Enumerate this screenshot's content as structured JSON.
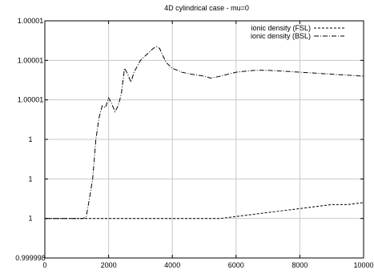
{
  "chart_data": {
    "type": "line",
    "title": "4D cylindrical case - mu=0",
    "xlabel": "",
    "ylabel": "",
    "xlim": [
      0,
      10000
    ],
    "ylim": [
      0.999998,
      1.00001
    ],
    "grid": true,
    "legend_position": "top-right",
    "x_ticks": [
      0,
      2000,
      4000,
      6000,
      8000,
      10000
    ],
    "x_tick_labels": [
      "0",
      "2000",
      "4000",
      "6000",
      "8000",
      "10000"
    ],
    "y_ticks": [
      0.999998,
      1.0,
      1.000002,
      1.000004,
      1.000006,
      1.000008,
      1.00001
    ],
    "y_tick_labels": [
      "0.999998",
      "1",
      "1",
      "1",
      "1.00001",
      "1.00001",
      "1.00001"
    ],
    "series": [
      {
        "name": "ionic density (FSL)",
        "style": "dashed",
        "color": "#000000",
        "x": [
          0,
          1000,
          2000,
          3000,
          4000,
          5000,
          5500,
          6000,
          6500,
          7000,
          7500,
          8000,
          8500,
          9000,
          9500,
          10000
        ],
        "y": [
          1.0,
          1.0,
          1.0,
          1.0,
          1.0,
          1.0,
          1.0,
          1.0000001,
          1.0000002,
          1.0000003,
          1.0000004,
          1.0000005,
          1.0000006,
          1.0000007,
          1.0000007,
          1.0000008
        ]
      },
      {
        "name": "ionic density (BSL)",
        "style": "dash-dot",
        "color": "#000000",
        "x": [
          0,
          1000,
          1200,
          1300,
          1400,
          1500,
          1600,
          1700,
          1800,
          1900,
          2000,
          2100,
          2200,
          2300,
          2400,
          2500,
          2600,
          2700,
          2800,
          3000,
          3200,
          3400,
          3500,
          3600,
          3800,
          4000,
          4300,
          4600,
          5000,
          5200,
          5500,
          6000,
          6600,
          7000,
          8000,
          9000,
          10000
        ],
        "y": [
          1.0,
          1.0,
          1.0,
          1.0000001,
          1.000001,
          1.000002,
          1.000004,
          1.0000051,
          1.0000057,
          1.0000056,
          1.0000061,
          1.0000058,
          1.0000054,
          1.0000057,
          1.0000063,
          1.0000076,
          1.0000073,
          1.0000069,
          1.0000074,
          1.000008,
          1.0000083,
          1.0000086,
          1.0000087,
          1.0000086,
          1.0000079,
          1.0000076,
          1.0000074,
          1.0000073,
          1.0000072,
          1.0000071,
          1.0000072,
          1.0000074,
          1.0000075,
          1.0000075,
          1.0000074,
          1.0000073,
          1.0000072
        ]
      }
    ]
  }
}
